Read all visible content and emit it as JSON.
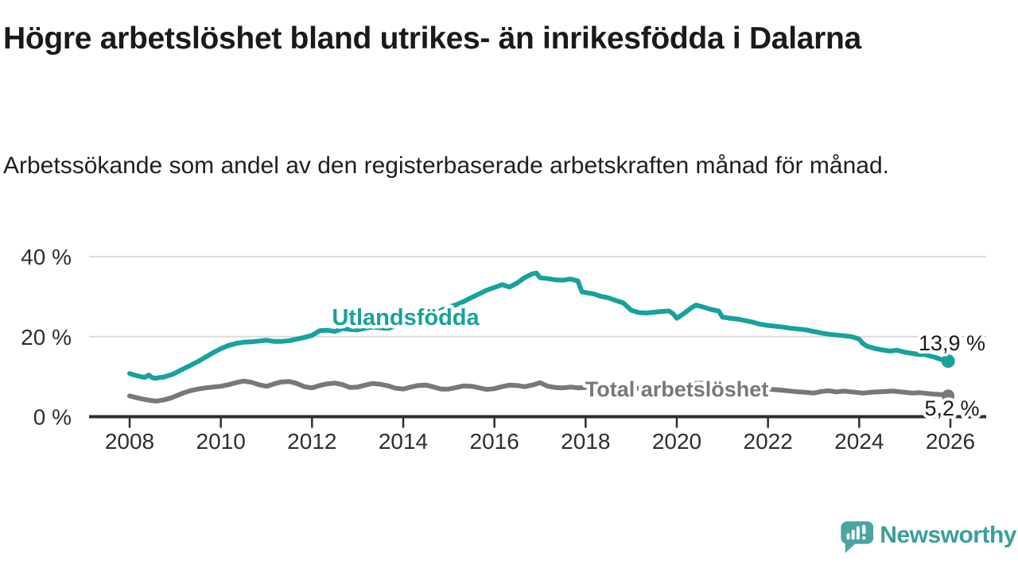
{
  "header": {
    "title": "Högre arbetslöshet bland utrikes- än inrikesfödda i Dalarna",
    "subtitle": "Arbetssökande som andel av den registerbaserade arbetskraften månad för månad."
  },
  "branding": {
    "logo_text": "Newsworthy",
    "logo_icon": "speech-bubble-bar-chart-icon"
  },
  "colors": {
    "teal_series": "#17a29b",
    "gray_series": "#77777c",
    "axis": "#2e2e2e",
    "gridline": "#dbdbdb",
    "text": "#1a1a1a",
    "logo": "#3b9e9a"
  },
  "chart_data": {
    "type": "line",
    "title": "Högre arbetslöshet bland utrikes- än inrikesfödda i Dalarna",
    "subtitle": "Arbetssökande som andel av den registerbaserade arbetskraften månad för månad.",
    "unit": "%",
    "grid": "horizontal-only",
    "legend_position": "inline-labels",
    "y_axis": {
      "range": [
        0,
        42
      ],
      "ticks": [
        {
          "value": 0,
          "label": "0 %"
        },
        {
          "value": 20,
          "label": "20 %"
        },
        {
          "value": 40,
          "label": "40 %"
        }
      ]
    },
    "x_axis": {
      "range": [
        2007.8,
        2026.6
      ],
      "ticks": [
        2008,
        2010,
        2012,
        2014,
        2016,
        2018,
        2020,
        2022,
        2024,
        2026
      ]
    },
    "series": [
      {
        "id": "utlandsfodda",
        "label": "Utlandsfödda",
        "color": "#17a29b",
        "end_label": "13,9 %",
        "end_value": 13.9,
        "points": [
          [
            2008.0,
            10.8
          ],
          [
            2008.08,
            10.5
          ],
          [
            2008.17,
            10.2
          ],
          [
            2008.25,
            10.0
          ],
          [
            2008.33,
            9.8
          ],
          [
            2008.42,
            10.4
          ],
          [
            2008.5,
            9.7
          ],
          [
            2008.58,
            9.6
          ],
          [
            2008.67,
            9.8
          ],
          [
            2008.75,
            9.9
          ],
          [
            2008.83,
            10.2
          ],
          [
            2008.92,
            10.5
          ],
          [
            2009.0,
            10.9
          ],
          [
            2009.17,
            11.9
          ],
          [
            2009.33,
            12.8
          ],
          [
            2009.5,
            13.8
          ],
          [
            2009.67,
            14.9
          ],
          [
            2009.83,
            16.0
          ],
          [
            2010.0,
            17.0
          ],
          [
            2010.17,
            17.8
          ],
          [
            2010.33,
            18.3
          ],
          [
            2010.5,
            18.6
          ],
          [
            2010.67,
            18.7
          ],
          [
            2010.83,
            18.9
          ],
          [
            2011.0,
            19.1
          ],
          [
            2011.17,
            18.8
          ],
          [
            2011.33,
            18.8
          ],
          [
            2011.5,
            19.0
          ],
          [
            2011.67,
            19.4
          ],
          [
            2011.83,
            19.8
          ],
          [
            2012.0,
            20.3
          ],
          [
            2012.17,
            21.5
          ],
          [
            2012.33,
            21.6
          ],
          [
            2012.5,
            21.3
          ],
          [
            2012.67,
            22.0
          ],
          [
            2012.83,
            21.8
          ],
          [
            2013.0,
            21.7
          ],
          [
            2013.17,
            22.1
          ],
          [
            2013.33,
            22.4
          ],
          [
            2013.5,
            22.2
          ],
          [
            2013.67,
            22.1
          ],
          [
            2013.83,
            22.6
          ],
          [
            2014.0,
            22.8
          ],
          [
            2014.17,
            23.1
          ],
          [
            2014.33,
            23.3
          ],
          [
            2014.5,
            24.2
          ],
          [
            2014.67,
            25.4
          ],
          [
            2014.83,
            26.6
          ],
          [
            2015.0,
            27.4
          ],
          [
            2015.17,
            28.0
          ],
          [
            2015.33,
            28.8
          ],
          [
            2015.5,
            29.8
          ],
          [
            2015.67,
            30.7
          ],
          [
            2015.83,
            31.6
          ],
          [
            2016.0,
            32.3
          ],
          [
            2016.17,
            33.0
          ],
          [
            2016.33,
            32.4
          ],
          [
            2016.5,
            33.4
          ],
          [
            2016.67,
            34.8
          ],
          [
            2016.83,
            35.7
          ],
          [
            2016.92,
            35.9
          ],
          [
            2017.0,
            34.7
          ],
          [
            2017.17,
            34.5
          ],
          [
            2017.33,
            34.2
          ],
          [
            2017.5,
            34.1
          ],
          [
            2017.67,
            34.4
          ],
          [
            2017.83,
            33.9
          ],
          [
            2017.92,
            31.2
          ],
          [
            2018.0,
            31.0
          ],
          [
            2018.17,
            30.7
          ],
          [
            2018.33,
            30.1
          ],
          [
            2018.5,
            29.7
          ],
          [
            2018.67,
            29.0
          ],
          [
            2018.83,
            28.4
          ],
          [
            2019.0,
            26.6
          ],
          [
            2019.17,
            26.0
          ],
          [
            2019.33,
            25.9
          ],
          [
            2019.5,
            26.1
          ],
          [
            2019.67,
            26.3
          ],
          [
            2019.83,
            26.4
          ],
          [
            2019.92,
            25.7
          ],
          [
            2020.0,
            24.6
          ],
          [
            2020.17,
            25.9
          ],
          [
            2020.33,
            27.3
          ],
          [
            2020.42,
            27.9
          ],
          [
            2020.58,
            27.4
          ],
          [
            2020.75,
            26.8
          ],
          [
            2020.92,
            26.4
          ],
          [
            2021.0,
            24.9
          ],
          [
            2021.17,
            24.6
          ],
          [
            2021.33,
            24.4
          ],
          [
            2021.5,
            24.0
          ],
          [
            2021.67,
            23.6
          ],
          [
            2021.83,
            23.1
          ],
          [
            2022.0,
            22.8
          ],
          [
            2022.17,
            22.6
          ],
          [
            2022.33,
            22.4
          ],
          [
            2022.5,
            22.1
          ],
          [
            2022.67,
            21.9
          ],
          [
            2022.83,
            21.7
          ],
          [
            2023.0,
            21.3
          ],
          [
            2023.17,
            20.9
          ],
          [
            2023.33,
            20.6
          ],
          [
            2023.5,
            20.4
          ],
          [
            2023.67,
            20.2
          ],
          [
            2023.83,
            20.0
          ],
          [
            2024.0,
            19.4
          ],
          [
            2024.08,
            18.3
          ],
          [
            2024.17,
            17.6
          ],
          [
            2024.33,
            17.1
          ],
          [
            2024.5,
            16.7
          ],
          [
            2024.67,
            16.4
          ],
          [
            2024.83,
            16.6
          ],
          [
            2025.0,
            16.1
          ],
          [
            2025.17,
            15.8
          ],
          [
            2025.33,
            15.5
          ],
          [
            2025.42,
            15.7
          ],
          [
            2025.5,
            15.3
          ],
          [
            2025.67,
            14.8
          ],
          [
            2025.83,
            14.2
          ],
          [
            2025.95,
            13.9
          ]
        ]
      },
      {
        "id": "total",
        "label": "Total arbetslöshet",
        "color": "#77777c",
        "end_label": "5,2 %",
        "end_value": 5.2,
        "points": [
          [
            2008.0,
            5.2
          ],
          [
            2008.17,
            4.7
          ],
          [
            2008.33,
            4.3
          ],
          [
            2008.5,
            4.0
          ],
          [
            2008.58,
            3.9
          ],
          [
            2008.75,
            4.2
          ],
          [
            2008.92,
            4.7
          ],
          [
            2009.0,
            5.1
          ],
          [
            2009.17,
            5.9
          ],
          [
            2009.33,
            6.5
          ],
          [
            2009.5,
            6.9
          ],
          [
            2009.67,
            7.2
          ],
          [
            2009.83,
            7.4
          ],
          [
            2010.0,
            7.6
          ],
          [
            2010.17,
            8.0
          ],
          [
            2010.33,
            8.5
          ],
          [
            2010.5,
            8.9
          ],
          [
            2010.67,
            8.6
          ],
          [
            2010.83,
            8.0
          ],
          [
            2011.0,
            7.6
          ],
          [
            2011.17,
            8.2
          ],
          [
            2011.33,
            8.7
          ],
          [
            2011.5,
            8.8
          ],
          [
            2011.67,
            8.3
          ],
          [
            2011.83,
            7.5
          ],
          [
            2012.0,
            7.2
          ],
          [
            2012.17,
            7.8
          ],
          [
            2012.33,
            8.2
          ],
          [
            2012.5,
            8.4
          ],
          [
            2012.67,
            8.0
          ],
          [
            2012.83,
            7.3
          ],
          [
            2013.0,
            7.4
          ],
          [
            2013.17,
            7.9
          ],
          [
            2013.33,
            8.3
          ],
          [
            2013.5,
            8.1
          ],
          [
            2013.67,
            7.7
          ],
          [
            2013.83,
            7.1
          ],
          [
            2014.0,
            6.9
          ],
          [
            2014.17,
            7.4
          ],
          [
            2014.33,
            7.8
          ],
          [
            2014.5,
            7.9
          ],
          [
            2014.67,
            7.4
          ],
          [
            2014.83,
            6.9
          ],
          [
            2015.0,
            6.9
          ],
          [
            2015.17,
            7.3
          ],
          [
            2015.33,
            7.7
          ],
          [
            2015.5,
            7.6
          ],
          [
            2015.67,
            7.2
          ],
          [
            2015.83,
            6.8
          ],
          [
            2016.0,
            7.0
          ],
          [
            2016.17,
            7.5
          ],
          [
            2016.33,
            7.9
          ],
          [
            2016.5,
            7.8
          ],
          [
            2016.67,
            7.5
          ],
          [
            2016.83,
            7.9
          ],
          [
            2017.0,
            8.5
          ],
          [
            2017.17,
            7.6
          ],
          [
            2017.33,
            7.3
          ],
          [
            2017.5,
            7.2
          ],
          [
            2017.67,
            7.4
          ],
          [
            2017.83,
            7.2
          ],
          [
            2018.0,
            7.3
          ],
          [
            2018.33,
            7.5
          ],
          [
            2018.67,
            7.1
          ],
          [
            2019.0,
            7.0
          ],
          [
            2019.33,
            7.2
          ],
          [
            2019.67,
            7.0
          ],
          [
            2020.0,
            7.2
          ],
          [
            2020.33,
            8.1
          ],
          [
            2020.5,
            8.4
          ],
          [
            2020.75,
            8.1
          ],
          [
            2021.0,
            7.8
          ],
          [
            2021.33,
            7.6
          ],
          [
            2021.67,
            7.2
          ],
          [
            2022.0,
            6.9
          ],
          [
            2022.33,
            6.6
          ],
          [
            2022.5,
            6.4
          ],
          [
            2022.67,
            6.2
          ],
          [
            2022.83,
            6.1
          ],
          [
            2023.0,
            5.9
          ],
          [
            2023.17,
            6.3
          ],
          [
            2023.33,
            6.5
          ],
          [
            2023.5,
            6.2
          ],
          [
            2023.67,
            6.4
          ],
          [
            2023.83,
            6.2
          ],
          [
            2024.0,
            6.0
          ],
          [
            2024.08,
            5.9
          ],
          [
            2024.25,
            6.1
          ],
          [
            2024.42,
            6.2
          ],
          [
            2024.58,
            6.3
          ],
          [
            2024.75,
            6.4
          ],
          [
            2024.92,
            6.2
          ],
          [
            2025.0,
            6.1
          ],
          [
            2025.17,
            5.9
          ],
          [
            2025.33,
            6.0
          ],
          [
            2025.5,
            5.8
          ],
          [
            2025.67,
            5.6
          ],
          [
            2025.83,
            5.5
          ],
          [
            2025.95,
            5.2
          ]
        ]
      }
    ]
  }
}
